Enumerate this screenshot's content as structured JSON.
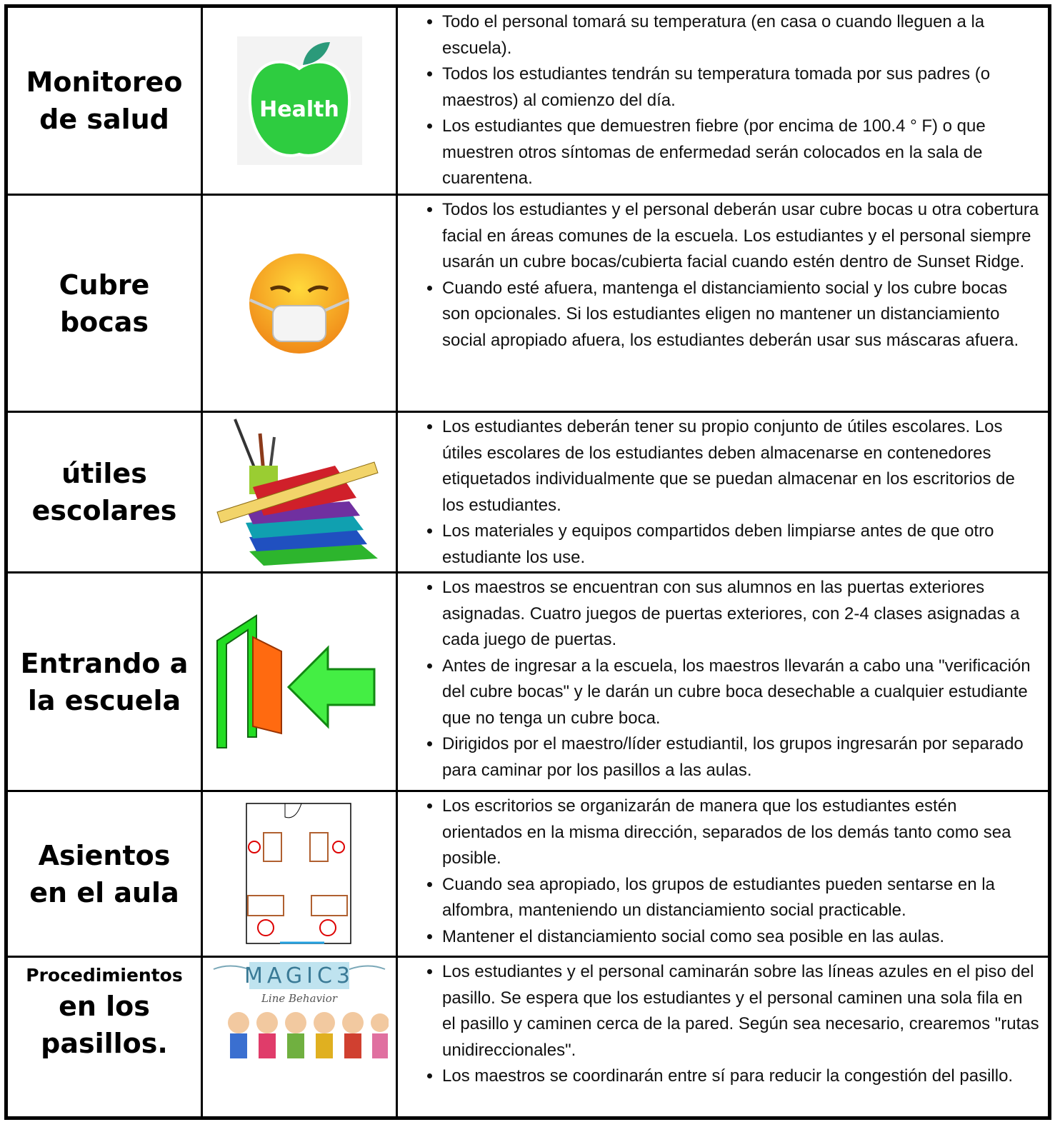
{
  "table": {
    "rows": [
      {
        "title_lines": [
          "Monitoreo",
          "de salud"
        ],
        "image_text": "Health",
        "bullets": [
          "Todo el personal tomará su temperatura (en casa o cuando lleguen a la escuela).",
          "Todos los estudiantes tendrán su temperatura tomada por sus padres (o maestros) al comienzo del día.",
          "Los estudiantes que demuestren fiebre (por encima de 100.4 ° F) o que muestren otros síntomas de enfermedad serán colocados en la sala de cuarentena."
        ]
      },
      {
        "title_lines": [
          "Cubre",
          "bocas"
        ],
        "bullets": [
          "Todos los estudiantes y el personal deberán usar cubre bocas u otra cobertura facial en áreas comunes de la escuela. Los estudiantes y el personal siempre usarán un cubre bocas/cubierta facial cuando estén dentro de Sunset Ridge.",
          "Cuando esté afuera, mantenga el distanciamiento social y los cubre bocas son opcionales. Si los estudiantes eligen no mantener un distanciamiento social apropiado afuera, los estudiantes deberán usar sus máscaras afuera."
        ]
      },
      {
        "title_lines": [
          "útiles",
          "escolares"
        ],
        "bullets": [
          "Los estudiantes deberán tener su propio conjunto de útiles escolares. Los útiles escolares de los estudiantes deben almacenarse en contenedores etiquetados individualmente que se puedan almacenar en los escritorios de los estudiantes.",
          "Los materiales y equipos compartidos deben limpiarse antes de que otro estudiante los use."
        ]
      },
      {
        "title_lines": [
          "Entrando a",
          "la escuela"
        ],
        "bullets": [
          "Los maestros se encuentran con sus alumnos en las puertas exteriores asignadas. Cuatro juegos de puertas exteriores, con 2-4 clases asignadas a cada juego de puertas.",
          "Antes de ingresar a la escuela, los maestros llevarán a cabo una \"verificación del cubre bocas\" y le darán un cubre boca desechable a cualquier estudiante que no tenga un cubre boca.",
          "Dirigidos por el maestro/líder estudiantil, los grupos ingresarán por separado para caminar por los pasillos a las aulas."
        ]
      },
      {
        "title_lines": [
          "Asientos",
          "en el aula"
        ],
        "bullets": [
          "Los escritorios se organizarán de manera que los estudiantes estén orientados en la misma dirección, separados de los demás tanto como sea posible.",
          "Cuando sea apropiado, los grupos de estudiantes pueden sentarse en la alfombra, manteniendo un distanciamiento social practicable.",
          "Mantener el distanciamiento social como sea posible en las aulas."
        ]
      },
      {
        "title_lines": [
          "Procedimientos",
          "en los pasillos."
        ],
        "image_text": "MAGIC3",
        "image_subtext": "Line Behavior",
        "bullets": [
          "Los estudiantes y el personal caminarán sobre las líneas azules en el piso del pasillo. Se espera que los estudiantes y el personal caminen una sola fila en el pasillo y caminen cerca de la pared. Según sea necesario, crearemos \"rutas unidireccionales\".",
          "Los maestros se coordinarán entre sí para reducir la congestión del pasillo."
        ]
      }
    ]
  }
}
